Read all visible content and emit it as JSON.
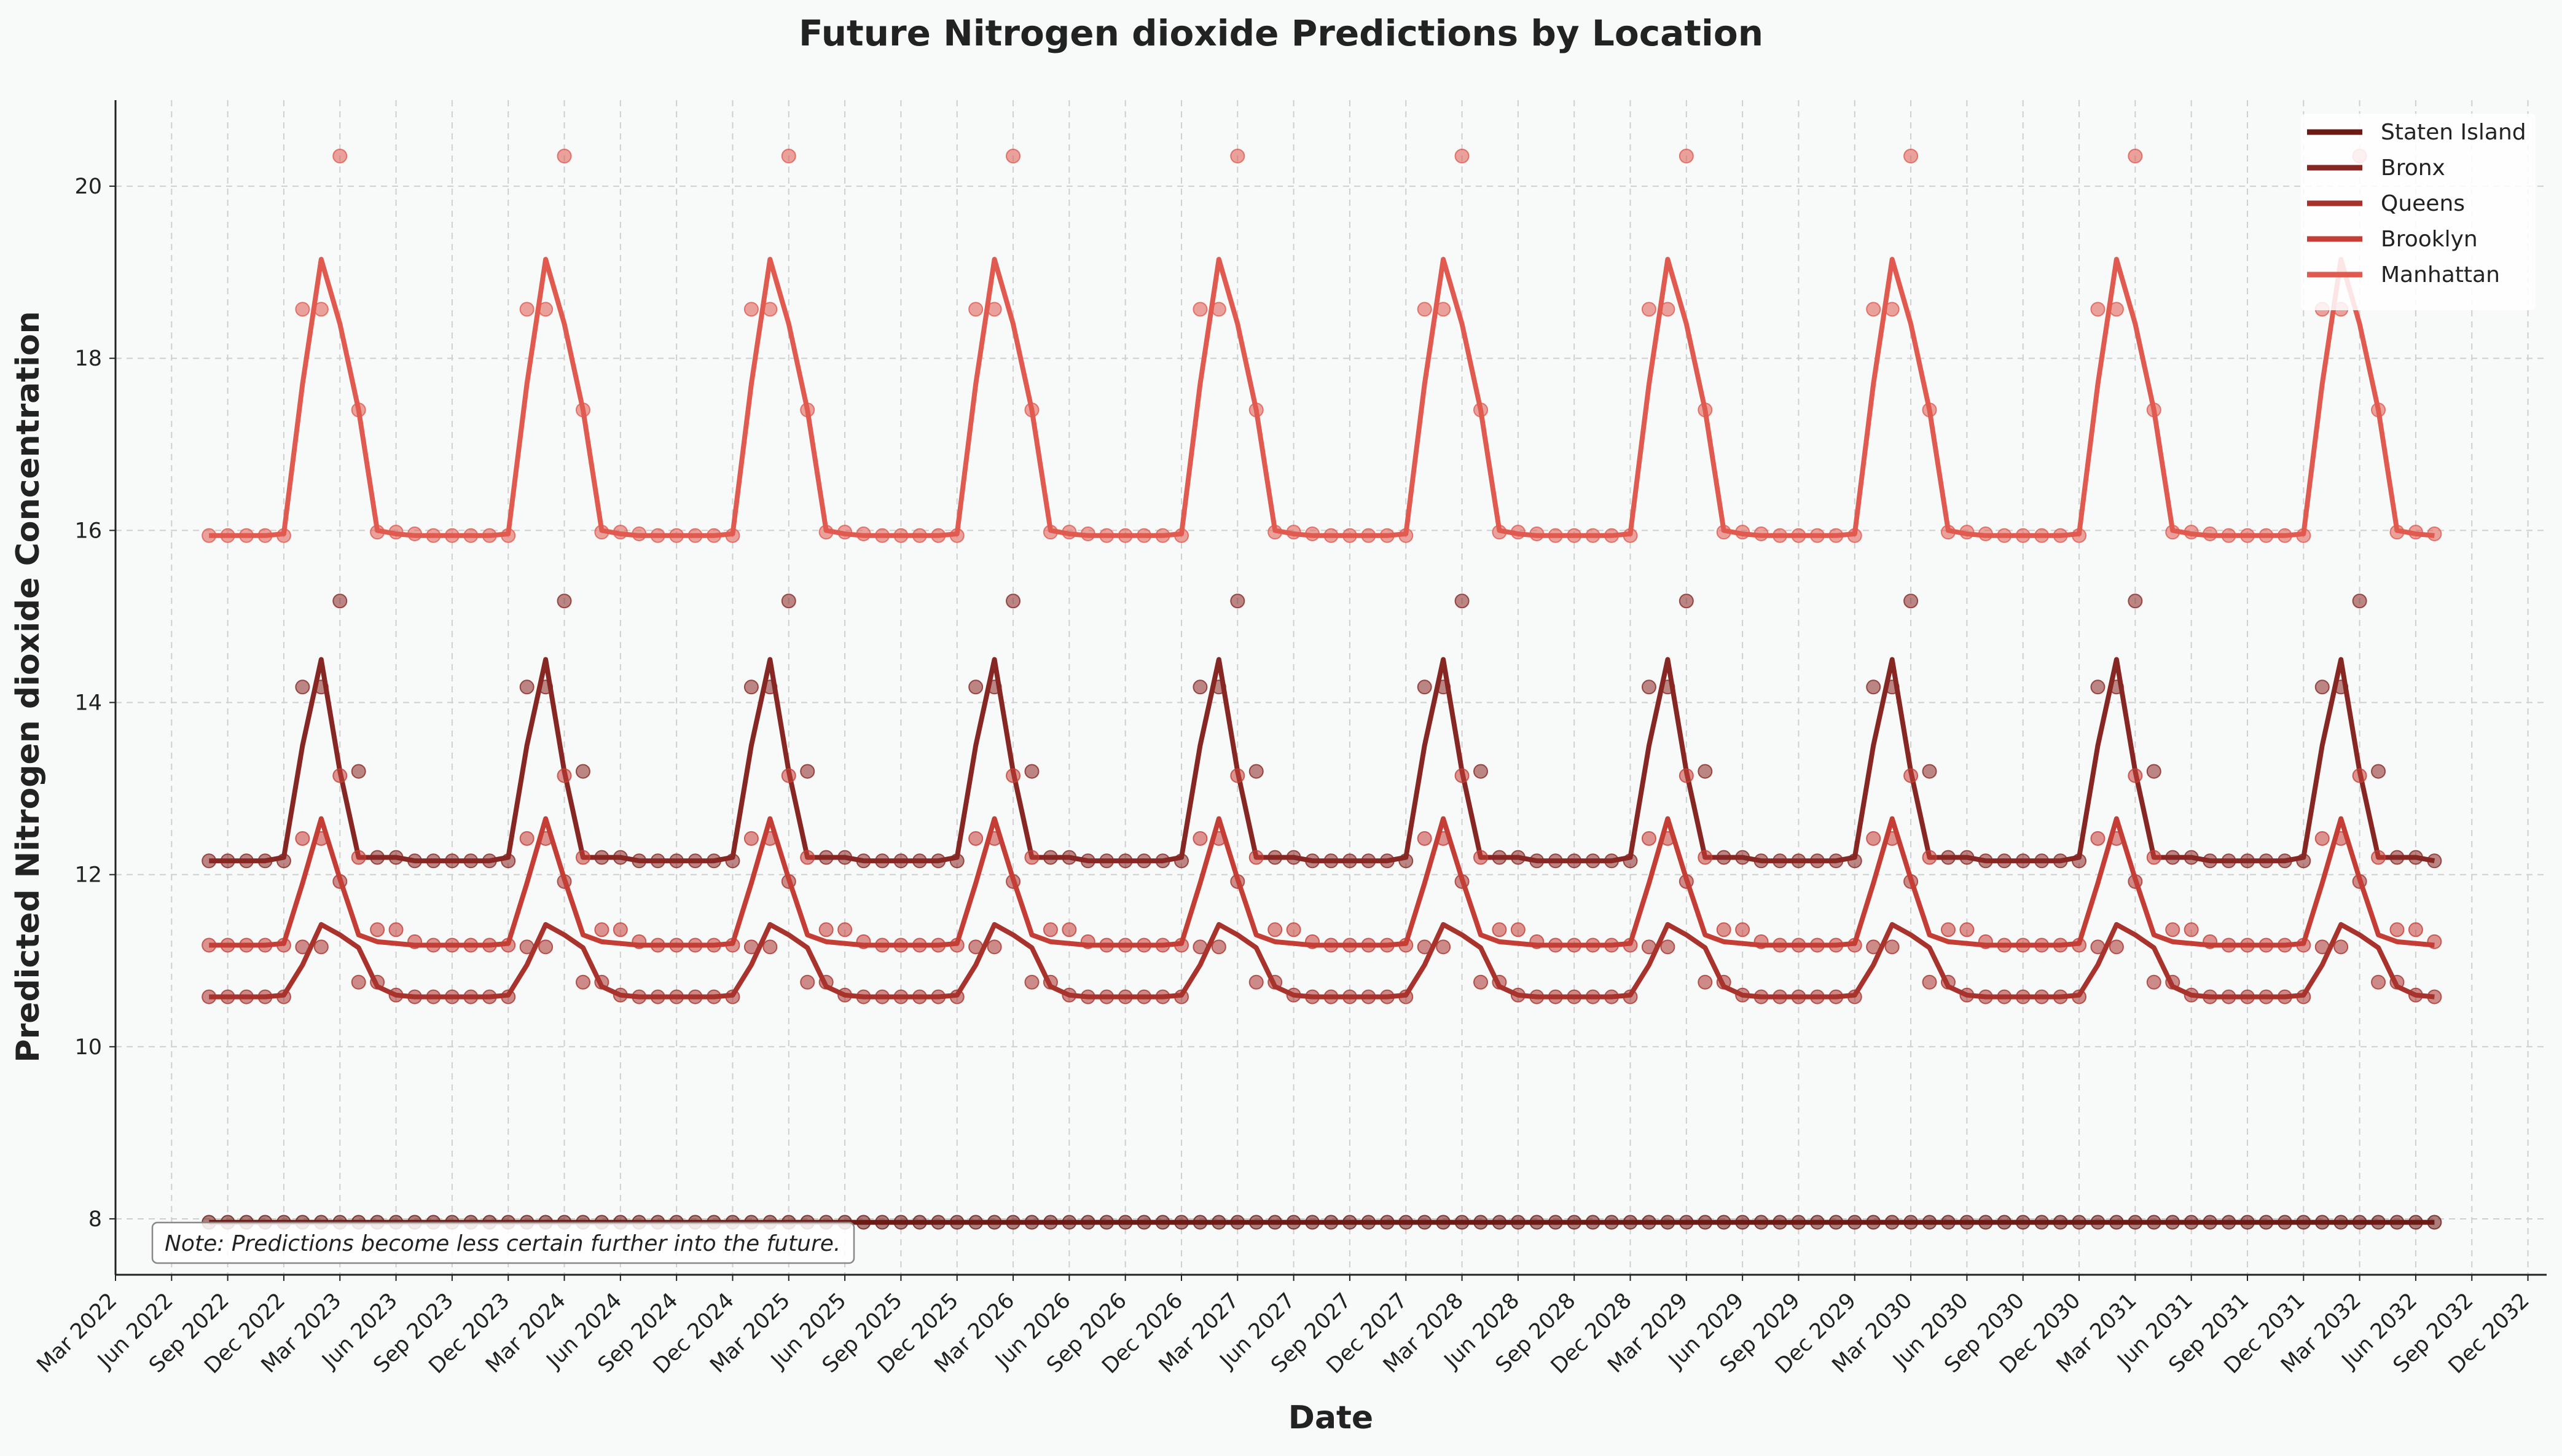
{
  "chart_data": {
    "type": "line",
    "title": "Future Nitrogen dioxide Predictions by Location",
    "xlabel": "Date",
    "ylabel": "Predicted Nitrogen dioxide Concentration",
    "ylim": [
      7.35,
      21.0
    ],
    "yticks": [
      8,
      10,
      12,
      14,
      16,
      18,
      20
    ],
    "x_start": "2022-08",
    "x_end": "2032-07",
    "xlim": [
      "2022-03",
      "2033-01"
    ],
    "xticks": [
      "Mar 2022",
      "Jun 2022",
      "Sep 2022",
      "Dec 2022",
      "Mar 2023",
      "Jun 2023",
      "Sep 2023",
      "Dec 2023",
      "Mar 2024",
      "Jun 2024",
      "Sep 2024",
      "Dec 2024",
      "Mar 2025",
      "Jun 2025",
      "Sep 2025",
      "Dec 2025",
      "Mar 2026",
      "Jun 2026",
      "Sep 2026",
      "Dec 2026",
      "Mar 2027",
      "Jun 2027",
      "Sep 2027",
      "Dec 2027",
      "Mar 2028",
      "Jun 2028",
      "Sep 2028",
      "Dec 2028",
      "Mar 2029",
      "Jun 2029",
      "Sep 2029",
      "Dec 2029",
      "Mar 2030",
      "Jun 2030",
      "Sep 2030",
      "Dec 2030",
      "Mar 2031",
      "Jun 2031",
      "Sep 2031",
      "Dec 2031",
      "Mar 2032",
      "Jun 2032",
      "Sep 2032",
      "Dec 2032"
    ],
    "grid": true,
    "legend_position": "top-right",
    "note": "Note: Predictions become less certain further into the future.",
    "series": [
      {
        "name": "Staten Island",
        "color": "#6b1a16",
        "points_by_month": [
          7.96,
          7.96,
          7.96,
          7.96,
          7.96,
          7.96,
          7.96,
          7.96,
          7.96,
          7.96,
          7.96,
          7.96
        ],
        "line_by_month": [
          7.96,
          7.96,
          7.96,
          7.96,
          7.96,
          7.96,
          7.96,
          7.96,
          7.96,
          7.96,
          7.96,
          7.96
        ]
      },
      {
        "name": "Bronx",
        "color": "#872723",
        "points_by_month": [
          14.18,
          14.18,
          15.18,
          13.2,
          12.2,
          12.2,
          12.16,
          12.16,
          12.16,
          12.16,
          12.16,
          12.16
        ],
        "line_by_month": [
          13.5,
          14.5,
          13.2,
          12.2,
          12.2,
          12.2,
          12.16,
          12.16,
          12.16,
          12.16,
          12.16,
          12.2
        ]
      },
      {
        "name": "Queens",
        "color": "#a8322c",
        "points_by_month": [
          11.16,
          11.16,
          11.92,
          10.75,
          10.75,
          10.6,
          10.58,
          10.58,
          10.58,
          10.58,
          10.58,
          10.58
        ],
        "line_by_month": [
          10.95,
          11.42,
          11.3,
          11.15,
          10.7,
          10.6,
          10.58,
          10.58,
          10.58,
          10.58,
          10.58,
          10.6
        ]
      },
      {
        "name": "Brooklyn",
        "color": "#c43e36",
        "points_by_month": [
          12.42,
          12.42,
          13.15,
          12.2,
          11.36,
          11.36,
          11.22,
          11.18,
          11.18,
          11.18,
          11.18,
          11.18
        ],
        "line_by_month": [
          11.9,
          12.65,
          11.95,
          11.3,
          11.22,
          11.2,
          11.18,
          11.18,
          11.18,
          11.18,
          11.18,
          11.2
        ]
      },
      {
        "name": "Manhattan",
        "color": "#e05a4f",
        "points_by_month": [
          18.57,
          18.57,
          20.35,
          17.4,
          15.98,
          15.98,
          15.96,
          15.94,
          15.94,
          15.94,
          15.94,
          15.94
        ],
        "line_by_month": [
          17.7,
          19.15,
          18.4,
          17.4,
          16.0,
          15.96,
          15.94,
          15.94,
          15.94,
          15.94,
          15.94,
          15.96
        ]
      }
    ]
  }
}
